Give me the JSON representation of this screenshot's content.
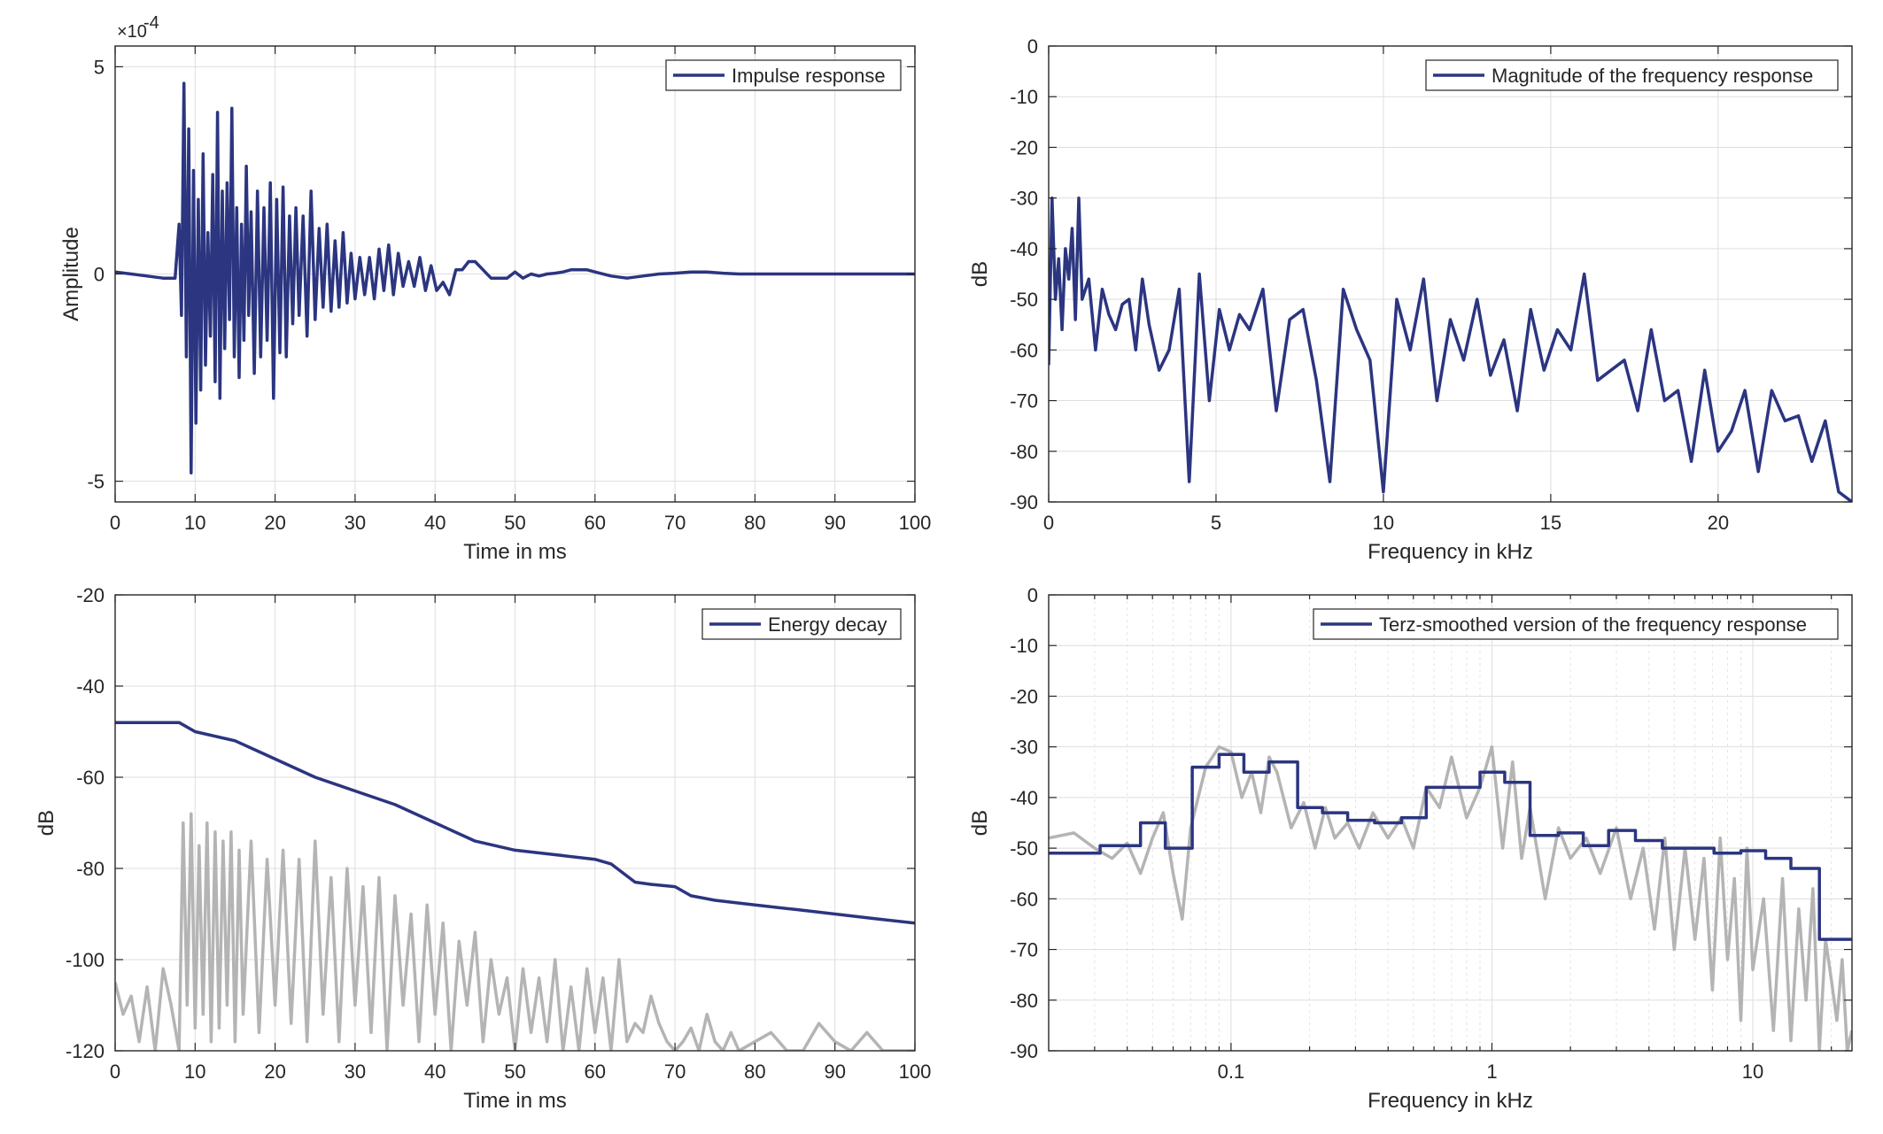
{
  "colors": {
    "main": "#2b3580",
    "secondary": "#b4b4b4",
    "axis": "#262626",
    "grid": "#dedede"
  },
  "chart_data": [
    {
      "id": "impulse",
      "type": "line",
      "xlabel": "Time in ms",
      "ylabel": "Amplitude",
      "exponent_label": "×10",
      "exponent_power": "-4",
      "xlim": [
        0,
        100
      ],
      "ylim": [
        -5.5,
        5.5
      ],
      "xticks": [
        0,
        10,
        20,
        30,
        40,
        50,
        60,
        70,
        80,
        90,
        100
      ],
      "yticks": [
        -5,
        0,
        5
      ],
      "grid": true,
      "legend_position": "top-right",
      "series": [
        {
          "name": "Impulse response",
          "color": "#2b3580",
          "x": [
            0,
            2,
            4,
            6,
            7.5,
            8.0,
            8.3,
            8.6,
            8.9,
            9.2,
            9.5,
            9.8,
            10.1,
            10.4,
            10.7,
            11.0,
            11.3,
            11.6,
            11.9,
            12.2,
            12.5,
            12.8,
            13.1,
            13.4,
            13.7,
            14.0,
            14.3,
            14.6,
            14.9,
            15.2,
            15.5,
            15.8,
            16.1,
            16.4,
            16.7,
            17.0,
            17.4,
            17.8,
            18.2,
            18.6,
            19.0,
            19.4,
            19.8,
            20.2,
            20.6,
            21.0,
            21.4,
            21.8,
            22.2,
            22.6,
            23.0,
            23.5,
            24.0,
            24.5,
            25.0,
            25.5,
            26.0,
            26.5,
            27.0,
            27.5,
            28.0,
            28.5,
            29.0,
            29.5,
            30.0,
            30.6,
            31.2,
            31.8,
            32.4,
            33.0,
            33.6,
            34.2,
            34.8,
            35.4,
            36.0,
            36.7,
            37.4,
            38.1,
            38.8,
            39.5,
            40.2,
            41.0,
            41.8,
            42.6,
            43.4,
            44.2,
            45.0,
            46.0,
            47.0,
            48.0,
            49.0,
            50.0,
            51.0,
            52.0,
            53.0,
            54.0,
            55.0,
            56.0,
            57.0,
            58.0,
            59.0,
            60.0,
            62.0,
            64.0,
            66.0,
            68.0,
            70.0,
            72.0,
            74.0,
            76.0,
            78.0,
            80.0,
            85.0,
            90.0,
            95.0,
            100.0
          ],
          "y": [
            0.05,
            0.0,
            -0.05,
            -0.1,
            -0.1,
            1.2,
            -1.0,
            4.6,
            -2.0,
            3.5,
            -4.8,
            2.5,
            -3.6,
            1.8,
            -2.8,
            2.9,
            -2.2,
            1.0,
            -1.5,
            2.4,
            -2.6,
            3.9,
            -3.0,
            2.0,
            -1.8,
            2.2,
            -1.1,
            4.0,
            -2.0,
            1.6,
            -2.5,
            1.2,
            -1.6,
            2.6,
            -1.0,
            1.5,
            -2.4,
            2.0,
            -2.0,
            1.6,
            -1.6,
            2.2,
            -3.0,
            1.8,
            -1.9,
            2.1,
            -2.0,
            1.4,
            -1.2,
            1.6,
            -1.0,
            1.4,
            -1.5,
            2.0,
            -1.1,
            1.1,
            -0.8,
            1.2,
            -0.9,
            0.8,
            -0.8,
            1.0,
            -0.7,
            0.5,
            -0.6,
            0.4,
            -0.5,
            0.4,
            -0.6,
            0.6,
            -0.4,
            0.7,
            -0.5,
            0.5,
            -0.3,
            0.3,
            -0.3,
            0.4,
            -0.4,
            0.2,
            -0.4,
            -0.2,
            -0.5,
            0.1,
            0.1,
            0.3,
            0.3,
            0.1,
            -0.1,
            -0.1,
            -0.1,
            0.05,
            -0.1,
            0.0,
            -0.05,
            0.0,
            0.02,
            0.05,
            0.1,
            0.1,
            0.1,
            0.05,
            -0.05,
            -0.1,
            -0.05,
            0.0,
            0.02,
            0.05,
            0.05,
            0.02,
            0.0,
            0.0,
            0.0,
            0.0,
            0.0,
            0.0
          ]
        }
      ]
    },
    {
      "id": "magnitude",
      "type": "line",
      "xlabel": "Frequency in kHz",
      "ylabel": "dB",
      "xlim": [
        0,
        24
      ],
      "ylim": [
        -90,
        0
      ],
      "xticks": [
        0,
        5,
        10,
        15,
        20
      ],
      "yticks": [
        0,
        -10,
        -20,
        -30,
        -40,
        -50,
        -60,
        -70,
        -80,
        -90
      ],
      "grid": true,
      "legend_position": "top-right",
      "series": [
        {
          "name": "Magnitude of the frequency response",
          "color": "#2b3580",
          "x": [
            0.0,
            0.1,
            0.2,
            0.3,
            0.4,
            0.5,
            0.6,
            0.7,
            0.8,
            0.9,
            1.0,
            1.2,
            1.4,
            1.6,
            1.8,
            2.0,
            2.2,
            2.4,
            2.6,
            2.8,
            3.0,
            3.3,
            3.6,
            3.9,
            4.2,
            4.5,
            4.8,
            5.1,
            5.4,
            5.7,
            6.0,
            6.4,
            6.8,
            7.2,
            7.6,
            8.0,
            8.4,
            8.8,
            9.2,
            9.6,
            10.0,
            10.4,
            10.8,
            11.2,
            11.6,
            12.0,
            12.4,
            12.8,
            13.2,
            13.6,
            14.0,
            14.4,
            14.8,
            15.2,
            15.6,
            16.0,
            16.4,
            16.8,
            17.2,
            17.6,
            18.0,
            18.4,
            18.8,
            19.2,
            19.6,
            20.0,
            20.4,
            20.8,
            21.2,
            21.6,
            22.0,
            22.4,
            22.8,
            23.2,
            23.6,
            24.0
          ],
          "y": [
            -63,
            -30,
            -50,
            -42,
            -56,
            -40,
            -46,
            -36,
            -54,
            -30,
            -50,
            -46,
            -60,
            -48,
            -53,
            -56,
            -51,
            -50,
            -60,
            -46,
            -55,
            -64,
            -60,
            -48,
            -86,
            -45,
            -70,
            -52,
            -60,
            -53,
            -56,
            -48,
            -72,
            -54,
            -52,
            -66,
            -86,
            -48,
            -56,
            -62,
            -88,
            -50,
            -60,
            -46,
            -70,
            -54,
            -62,
            -50,
            -65,
            -58,
            -72,
            -52,
            -64,
            -56,
            -60,
            -45,
            -66,
            -64,
            -62,
            -72,
            -56,
            -70,
            -68,
            -82,
            -64,
            -80,
            -76,
            -68,
            -84,
            -68,
            -74,
            -73,
            -82,
            -74,
            -88,
            -90
          ]
        }
      ]
    },
    {
      "id": "energy",
      "type": "line",
      "xlabel": "Time in ms",
      "ylabel": "dB",
      "xlim": [
        0,
        100
      ],
      "ylim": [
        -120,
        -20
      ],
      "xticks": [
        0,
        10,
        20,
        30,
        40,
        50,
        60,
        70,
        80,
        90,
        100
      ],
      "yticks": [
        -20,
        -40,
        -60,
        -80,
        -100,
        -120
      ],
      "grid": true,
      "legend_position": "top-right",
      "series": [
        {
          "name": "Energy decay",
          "color": "#2b3580",
          "x": [
            0,
            8,
            10,
            15,
            20,
            25,
            30,
            35,
            40,
            45,
            50,
            55,
            60,
            62,
            65,
            67,
            70,
            72,
            75,
            80,
            85,
            90,
            95,
            100
          ],
          "y": [
            -48,
            -48,
            -50,
            -52,
            -56,
            -60,
            -63,
            -66,
            -70,
            -74,
            -76,
            -77,
            -78,
            -79,
            -83,
            -83.5,
            -84,
            -86,
            -87,
            -88,
            -89,
            -90,
            -91,
            -92
          ]
        },
        {
          "name": "",
          "color": "#b4b4b4",
          "x": [
            0,
            1,
            2,
            3,
            4,
            5,
            6,
            7,
            8,
            8.5,
            9,
            9.5,
            10,
            10.5,
            11,
            11.5,
            12,
            12.5,
            13,
            13.5,
            14,
            14.5,
            15,
            15.5,
            16,
            17,
            18,
            19,
            20,
            21,
            22,
            23,
            24,
            25,
            26,
            27,
            28,
            29,
            30,
            31,
            32,
            33,
            34,
            35,
            36,
            37,
            38,
            39,
            40,
            41,
            42,
            43,
            44,
            45,
            46,
            47,
            48,
            49,
            50,
            51,
            52,
            53,
            54,
            55,
            56,
            57,
            58,
            59,
            60,
            61,
            62,
            63,
            64,
            65,
            66,
            67,
            68,
            69,
            70,
            71,
            72,
            73,
            74,
            75,
            76,
            77,
            78,
            80,
            82,
            84,
            86,
            88,
            90,
            92,
            94,
            96,
            98,
            100
          ],
          "y": [
            -105,
            -112,
            -108,
            -118,
            -106,
            -120,
            -102,
            -110,
            -120,
            -70,
            -110,
            -68,
            -115,
            -75,
            -112,
            -70,
            -118,
            -72,
            -115,
            -74,
            -110,
            -72,
            -118,
            -76,
            -112,
            -74,
            -116,
            -78,
            -110,
            -76,
            -114,
            -78,
            -118,
            -74,
            -112,
            -82,
            -118,
            -80,
            -110,
            -84,
            -116,
            -82,
            -120,
            -86,
            -110,
            -90,
            -118,
            -88,
            -112,
            -92,
            -120,
            -96,
            -110,
            -94,
            -118,
            -100,
            -112,
            -104,
            -120,
            -102,
            -116,
            -104,
            -118,
            -100,
            -120,
            -106,
            -120,
            -102,
            -116,
            -104,
            -120,
            -100,
            -118,
            -114,
            -116,
            -108,
            -114,
            -118,
            -120,
            -118,
            -115,
            -120,
            -112,
            -118,
            -120,
            -116,
            -120,
            -118,
            -116,
            -120,
            -120,
            -114,
            -118,
            -120,
            -116,
            -120,
            -120,
            -120
          ]
        }
      ]
    },
    {
      "id": "terz",
      "type": "line",
      "xscale": "log",
      "xlabel": "Frequency in kHz",
      "ylabel": "dB",
      "xlim": [
        0.02,
        24
      ],
      "ylim": [
        -90,
        0
      ],
      "xticks": [
        0.1,
        1,
        10
      ],
      "xticklabels": [
        "0.1",
        "1",
        "10"
      ],
      "yticks": [
        0,
        -10,
        -20,
        -30,
        -40,
        -50,
        -60,
        -70,
        -80,
        -90
      ],
      "grid": true,
      "legend_position": "top-right",
      "series": [
        {
          "name": "Terz-smoothed version of the frequency response",
          "color": "#2b3580",
          "step": true,
          "x": [
            0.02,
            0.0315,
            0.045,
            0.056,
            0.071,
            0.09,
            0.112,
            0.14,
            0.18,
            0.224,
            0.28,
            0.355,
            0.45,
            0.56,
            0.9,
            1.12,
            1.4,
            1.8,
            2.24,
            2.8,
            3.55,
            4.5,
            5.6,
            7.1,
            9.0,
            11.2,
            14.0,
            18.0,
            24.0
          ],
          "y": [
            -51,
            -49.5,
            -45,
            -50,
            -34,
            -31.5,
            -35,
            -33,
            -42,
            -43,
            -44.5,
            -45,
            -44,
            -38,
            -35,
            -37,
            -47.5,
            -47,
            -49.5,
            -46.5,
            -48.5,
            -50,
            -50,
            -51,
            -50.5,
            -52,
            -54,
            -68,
            -68
          ]
        },
        {
          "name": "",
          "color": "#b4b4b4",
          "x": [
            0.02,
            0.025,
            0.03,
            0.035,
            0.04,
            0.045,
            0.05,
            0.055,
            0.06,
            0.065,
            0.07,
            0.08,
            0.09,
            0.1,
            0.11,
            0.12,
            0.13,
            0.14,
            0.15,
            0.17,
            0.19,
            0.21,
            0.23,
            0.25,
            0.28,
            0.31,
            0.35,
            0.4,
            0.45,
            0.5,
            0.56,
            0.63,
            0.7,
            0.8,
            0.9,
            1.0,
            1.1,
            1.2,
            1.3,
            1.4,
            1.6,
            1.8,
            2.0,
            2.3,
            2.6,
            3.0,
            3.4,
            3.8,
            4.2,
            4.6,
            5.0,
            5.5,
            6.0,
            6.5,
            7.0,
            7.5,
            8.0,
            8.5,
            9.0,
            9.5,
            10.0,
            11.0,
            12.0,
            13.0,
            14.0,
            15.0,
            16.0,
            17.0,
            18.0,
            19.0,
            20.0,
            21.0,
            22.0,
            23.0,
            24.0
          ],
          "y": [
            -48,
            -47,
            -50,
            -52,
            -49,
            -55,
            -48,
            -43,
            -55,
            -64,
            -46,
            -34,
            -30,
            -31,
            -40,
            -35,
            -43,
            -32,
            -35,
            -46,
            -41,
            -50,
            -42,
            -48,
            -45,
            -50,
            -43,
            -48,
            -44,
            -50,
            -38,
            -42,
            -32,
            -44,
            -38,
            -30,
            -50,
            -33,
            -52,
            -42,
            -60,
            -46,
            -52,
            -48,
            -55,
            -46,
            -60,
            -50,
            -66,
            -48,
            -70,
            -50,
            -68,
            -52,
            -78,
            -48,
            -72,
            -56,
            -84,
            -50,
            -74,
            -60,
            -86,
            -56,
            -88,
            -62,
            -80,
            -58,
            -90,
            -68,
            -76,
            -84,
            -72,
            -90,
            -86
          ]
        }
      ]
    }
  ]
}
